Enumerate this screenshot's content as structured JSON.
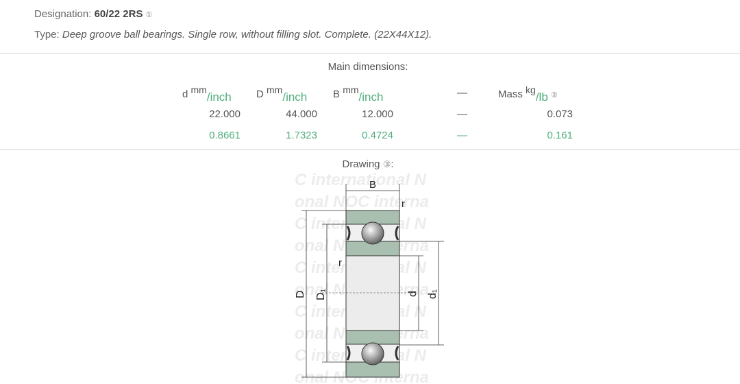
{
  "designation": {
    "label": "Designation:",
    "value": "60/22 2RS",
    "note": "①"
  },
  "type": {
    "label": "Type:",
    "value": "Deep groove ball bearings. Single row, without filling slot. Complete. (22X44X12)."
  },
  "dimensions": {
    "title": "Main dimensions:",
    "headers": [
      {
        "symbol": "d",
        "unit_top": "mm",
        "unit_bottom": "inch"
      },
      {
        "symbol": "D",
        "unit_top": "mm",
        "unit_bottom": "inch"
      },
      {
        "symbol": "B",
        "unit_top": "mm",
        "unit_bottom": "inch"
      },
      {
        "symbol": "—"
      },
      {
        "symbol": "Mass",
        "unit_top": "kg",
        "unit_bottom": "lb",
        "note": "②"
      }
    ],
    "mm_row": [
      "22.000",
      "44.000",
      "12.000",
      "—",
      "0.073"
    ],
    "inch_row": [
      "0.8661",
      "1.7323",
      "0.4724",
      "—",
      "0.161"
    ]
  },
  "drawing": {
    "label": "Drawing",
    "note": "③",
    "suffix": ":",
    "labels": {
      "B": "B",
      "r": "r",
      "D": "D",
      "D1": "D₁",
      "d": "d",
      "d1": "d₁"
    },
    "watermark": "NOC international"
  },
  "colors": {
    "inch": "#4fae7d",
    "ring": "#a9bfb0"
  }
}
